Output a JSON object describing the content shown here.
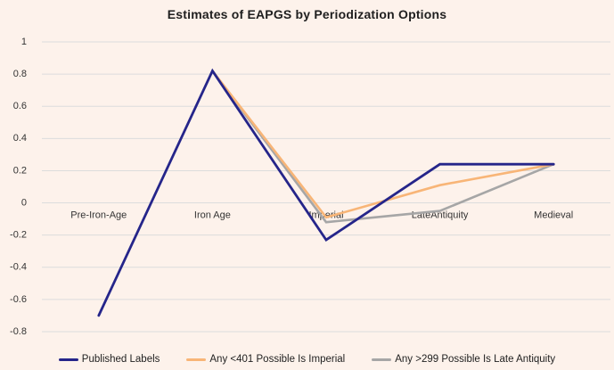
{
  "title": "Estimates of EAPGS by Periodization Options",
  "colors": {
    "background": "#FDF2EB",
    "gridline": "#DCDCDC",
    "title_text": "#1F1F1F",
    "tick_text": "#333333",
    "legend_text": "#1F1F1F"
  },
  "chart_data": {
    "type": "line",
    "title": "Estimates of EAPGS by Periodization Options",
    "categories": [
      "Pre-Iron-Age",
      "Iron Age",
      "Imperial",
      "LateAntiquity",
      "Medieval"
    ],
    "series": [
      {
        "name": "Published Labels",
        "color": "#25258A",
        "stroke_width": 2.8,
        "values": [
          -0.7,
          0.82,
          -0.23,
          0.24,
          0.24
        ]
      },
      {
        "name": "Any <401 Possible Is Imperial",
        "color": "#F8B577",
        "stroke_width": 2.6,
        "values": [
          null,
          0.82,
          -0.09,
          0.11,
          0.24
        ]
      },
      {
        "name": "Any >299 Possible Is Late Antiquity",
        "color": "#A6A6A6",
        "stroke_width": 2.6,
        "values": [
          null,
          0.82,
          -0.12,
          -0.05,
          0.24
        ]
      }
    ],
    "ylim": [
      -0.8,
      1
    ],
    "ytick_step": 0.2,
    "yticks": [
      1,
      0.8,
      0.6,
      0.4,
      0.2,
      0,
      -0.2,
      -0.4,
      -0.6,
      -0.8
    ],
    "xlabel": "",
    "ylabel": "",
    "grid": true,
    "legend_position": "bottom",
    "category_labels_at_zero_line": true
  }
}
